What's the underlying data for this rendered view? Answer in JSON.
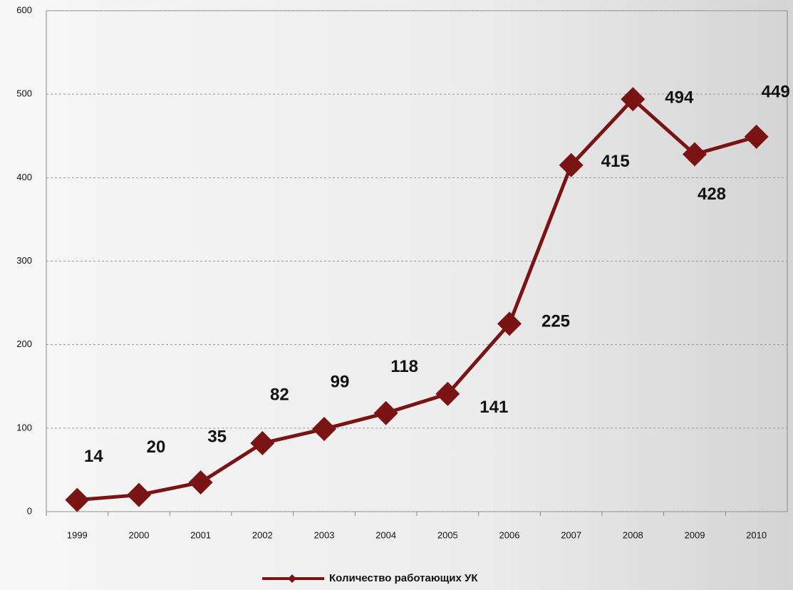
{
  "chart_data": {
    "type": "line",
    "categories": [
      "1999",
      "2000",
      "2001",
      "2002",
      "2003",
      "2004",
      "2005",
      "2006",
      "2007",
      "2008",
      "2009",
      "2010"
    ],
    "series": [
      {
        "name": "Количество работающих УК",
        "color": "#7a1414",
        "values": [
          14,
          20,
          35,
          82,
          99,
          118,
          141,
          225,
          415,
          494,
          428,
          449
        ]
      }
    ],
    "ylim": [
      0,
      600
    ],
    "yticks": [
      0,
      100,
      200,
      300,
      400,
      500,
      600
    ],
    "grid": true
  }
}
